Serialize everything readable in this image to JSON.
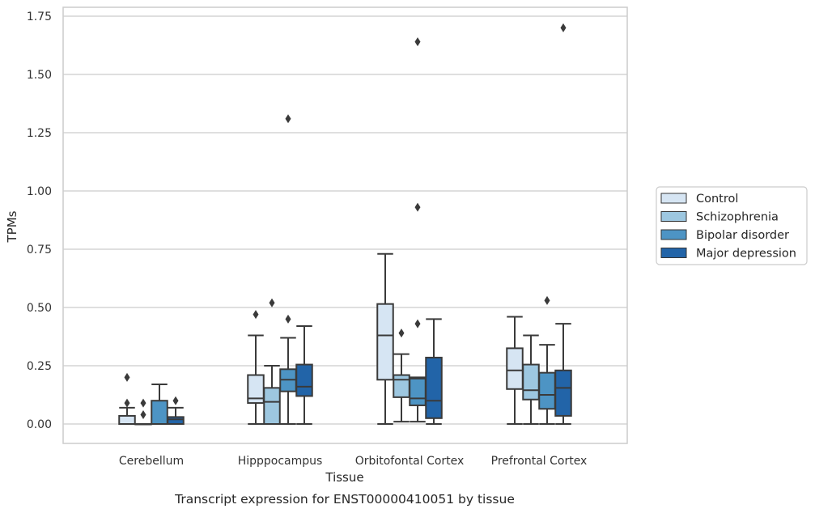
{
  "caption": "Transcript expression for ENST00000410051 by tissue",
  "colors": {
    "Control": "#d6e5f3",
    "Schizophrenia": "#9dc7e0",
    "Bipolar disorder": "#4d94c4",
    "Major depression": "#2264a8",
    "box_edge": "#3a3a3a",
    "grid": "#cccccc"
  },
  "chart_data": {
    "type": "box",
    "xlabel": "Tissue",
    "ylabel": "TPMs",
    "ylim": [
      -0.08,
      1.79
    ],
    "yticks": [
      0.0,
      0.25,
      0.5,
      0.75,
      1.0,
      1.25,
      1.5,
      1.75
    ],
    "ytick_labels": [
      "0.00",
      "0.25",
      "0.50",
      "0.75",
      "1.00",
      "1.25",
      "1.50",
      "1.75"
    ],
    "grid": true,
    "legend_position": "right",
    "categories": [
      "Cerebellum",
      "Hipppocampus",
      "Orbitofontal Cortex",
      "Prefrontal Cortex"
    ],
    "series": [
      {
        "name": "Control",
        "boxes": [
          {
            "whislo": 0.0,
            "q1": 0.0,
            "med": 0.0,
            "q3": 0.035,
            "whishi": 0.07,
            "fliers": [
              0.09,
              0.2
            ]
          },
          {
            "whislo": 0.0,
            "q1": 0.09,
            "med": 0.11,
            "q3": 0.21,
            "whishi": 0.38,
            "fliers": [
              0.47
            ]
          },
          {
            "whislo": 0.0,
            "q1": 0.19,
            "med": 0.38,
            "q3": 0.515,
            "whishi": 0.73,
            "fliers": []
          },
          {
            "whislo": 0.0,
            "q1": 0.15,
            "med": 0.23,
            "q3": 0.325,
            "whishi": 0.46,
            "fliers": []
          }
        ]
      },
      {
        "name": "Schizophrenia",
        "boxes": [
          {
            "whislo": 0.0,
            "q1": 0.0,
            "med": 0.0,
            "q3": 0.0,
            "whishi": 0.0,
            "fliers": [
              0.04,
              0.09
            ]
          },
          {
            "whislo": 0.0,
            "q1": 0.0,
            "med": 0.095,
            "q3": 0.155,
            "whishi": 0.25,
            "fliers": [
              0.52
            ]
          },
          {
            "whislo": 0.01,
            "q1": 0.115,
            "med": 0.19,
            "q3": 0.21,
            "whishi": 0.3,
            "fliers": [
              0.39
            ]
          },
          {
            "whislo": 0.0,
            "q1": 0.105,
            "med": 0.145,
            "q3": 0.255,
            "whishi": 0.38,
            "fliers": []
          }
        ]
      },
      {
        "name": "Bipolar disorder",
        "boxes": [
          {
            "whislo": 0.0,
            "q1": 0.0,
            "med": 0.0,
            "q3": 0.1,
            "whishi": 0.17,
            "fliers": []
          },
          {
            "whislo": 0.0,
            "q1": 0.14,
            "med": 0.19,
            "q3": 0.235,
            "whishi": 0.37,
            "fliers": [
              0.45,
              1.31
            ]
          },
          {
            "whislo": 0.01,
            "q1": 0.08,
            "med": 0.11,
            "q3": 0.195,
            "whishi": 0.2,
            "fliers": [
              0.43,
              0.93,
              1.64
            ]
          },
          {
            "whislo": 0.0,
            "q1": 0.065,
            "med": 0.125,
            "q3": 0.22,
            "whishi": 0.34,
            "fliers": [
              0.53
            ]
          }
        ]
      },
      {
        "name": "Major depression",
        "boxes": [
          {
            "whislo": 0.0,
            "q1": 0.0,
            "med": 0.02,
            "q3": 0.03,
            "whishi": 0.07,
            "fliers": [
              0.1
            ]
          },
          {
            "whislo": 0.0,
            "q1": 0.12,
            "med": 0.16,
            "q3": 0.255,
            "whishi": 0.42,
            "fliers": []
          },
          {
            "whislo": 0.0,
            "q1": 0.025,
            "med": 0.1,
            "q3": 0.285,
            "whishi": 0.45,
            "fliers": []
          },
          {
            "whislo": 0.0,
            "q1": 0.035,
            "med": 0.155,
            "q3": 0.23,
            "whishi": 0.43,
            "fliers": [
              1.7
            ]
          }
        ]
      }
    ]
  }
}
